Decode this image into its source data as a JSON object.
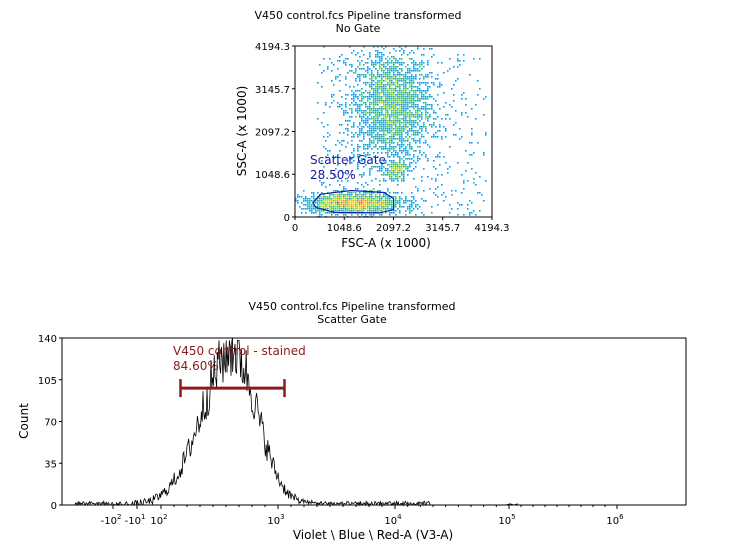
{
  "chart_data": [
    {
      "type": "scatter",
      "title": "V450 control.fcs Pipeline transformed",
      "subtitle": "No Gate",
      "xlabel": "FSC-A (x 1000)",
      "ylabel": "SSC-A (x 1000)",
      "xlim": [
        0,
        4194.3
      ],
      "ylim": [
        0,
        4194.3
      ],
      "x_ticks": [
        "0",
        "1048.6",
        "2097.2",
        "3145.7",
        "4194.3"
      ],
      "y_ticks": [
        "0",
        "1048.6",
        "2097.2",
        "3145.7",
        "4194.3"
      ],
      "clusters": [
        {
          "cx": 2050,
          "cy": 2700,
          "sx": 420,
          "sy": 700
        },
        {
          "cx": 1250,
          "cy": 330,
          "sx": 520,
          "sy": 130
        },
        {
          "cx": 2150,
          "cy": 1150,
          "sx": 120,
          "sy": 120
        }
      ],
      "gate": {
        "name": "Scatter Gate",
        "percent": "28.50%",
        "color": "#1a1aa0",
        "polygon": [
          [
            450,
            230
          ],
          [
            850,
            110
          ],
          [
            1800,
            100
          ],
          [
            2100,
            180
          ],
          [
            2100,
            450
          ],
          [
            1900,
            600
          ],
          [
            1200,
            650
          ],
          [
            550,
            560
          ],
          [
            380,
            350
          ]
        ]
      }
    },
    {
      "type": "line",
      "title": "V450 control.fcs Pipeline transformed",
      "subtitle": "Scatter Gate",
      "xlabel": "Violet \\ Blue \\ Red-A (V3-A)",
      "ylabel": "Count",
      "ylim": [
        0,
        140
      ],
      "y_ticks": [
        "0",
        "35",
        "70",
        "105",
        "140"
      ],
      "x_ticks": [
        {
          "label": "-10",
          "exp": "2",
          "at": -100
        },
        {
          "label": "-10",
          "exp": "1",
          "at": -10
        },
        {
          "label": "10",
          "exp": "2",
          "at": 100
        },
        {
          "label": "10",
          "exp": "3",
          "at": 1000
        },
        {
          "label": "10",
          "exp": "4",
          "at": 10000
        },
        {
          "label": "10",
          "exp": "5",
          "at": 100000
        },
        {
          "label": "10",
          "exp": "6",
          "at": 1000000
        }
      ],
      "peak": {
        "x": 650,
        "count": 130
      },
      "gate": {
        "name": "V450 control - stained",
        "percent": "84.60%",
        "range": [
          250,
          1500
        ],
        "level": 98,
        "color": "#8b1a1a"
      }
    }
  ]
}
